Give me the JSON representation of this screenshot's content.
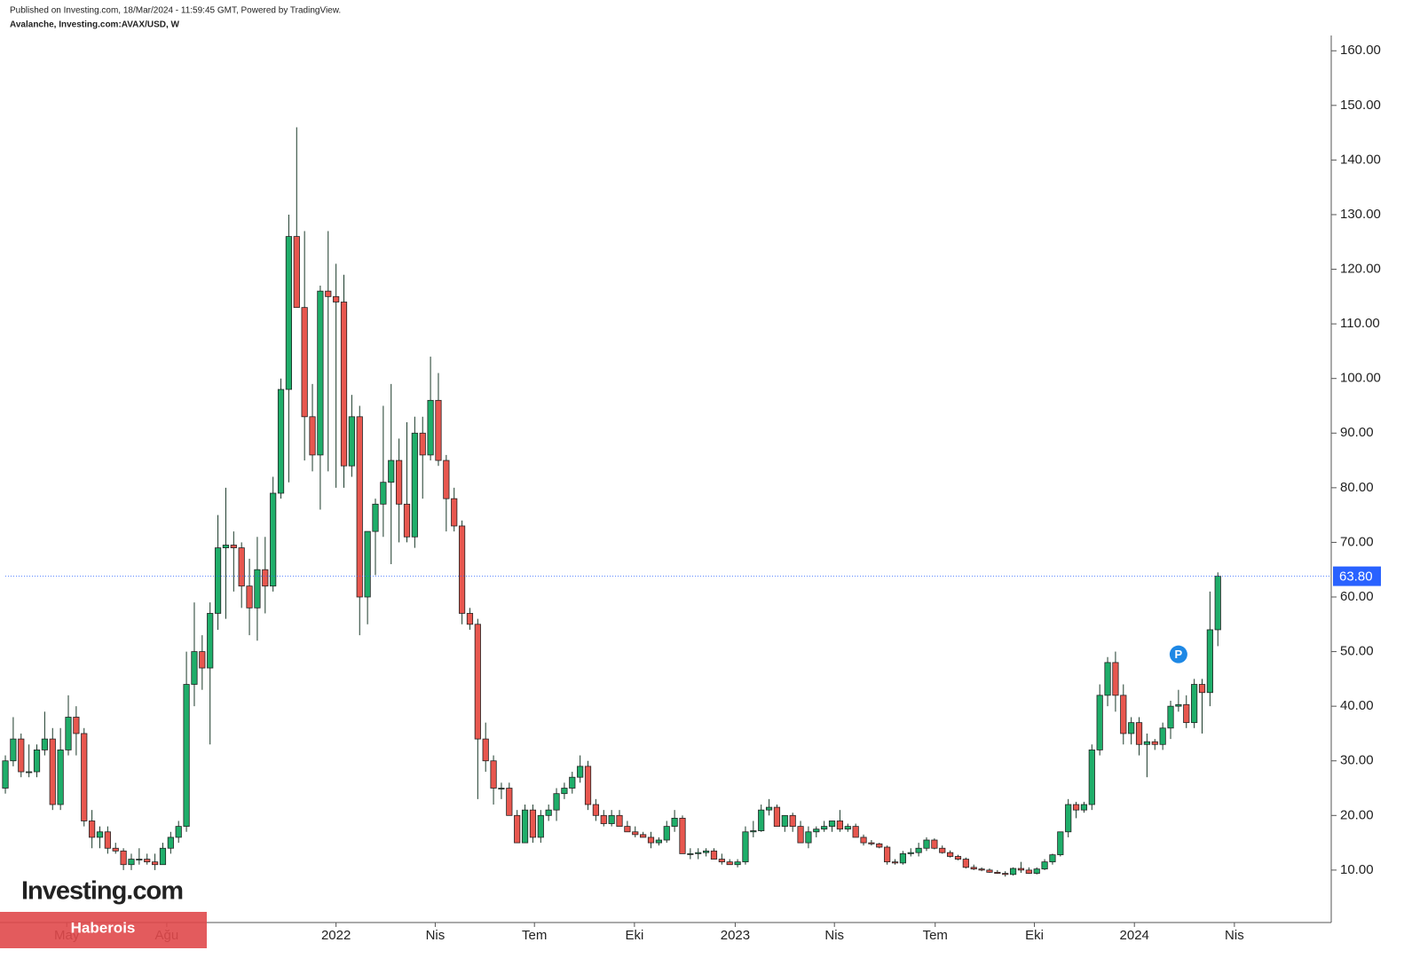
{
  "chart_data": {
    "type": "candlestick",
    "source": "Published on Investing.com, 18/Mar/2024 - 11:59:45 GMT, Powered by TradingView.",
    "title": "Avalanche, Investing.com:AVAX/USD, W",
    "logo": "Investing.com",
    "watermark": "Haberois",
    "marker": "P",
    "up_color": "#1fae6a",
    "down_color": "#e8574f",
    "last_price": {
      "value": 63.8,
      "label": "63.80"
    },
    "last_price_color": "#2962ff",
    "open": [
      25,
      30,
      34,
      28,
      28,
      32,
      34,
      22,
      32,
      38,
      35,
      19,
      16,
      17,
      14,
      13.5,
      11,
      12,
      12,
      11.5,
      11,
      14,
      16,
      18,
      44,
      50,
      47,
      57,
      69,
      69.5,
      69,
      62,
      58,
      65,
      62,
      79,
      98,
      126,
      113,
      93,
      86,
      116,
      115,
      114,
      84,
      93,
      60,
      72,
      77,
      81,
      85,
      77,
      71,
      90,
      86,
      96,
      85,
      78,
      73,
      57,
      55,
      34,
      30,
      25,
      25,
      20,
      15,
      21,
      16,
      20,
      21,
      24,
      25,
      27,
      29,
      22,
      20,
      18.5,
      20,
      18,
      17,
      16.5,
      16,
      15,
      15.5,
      18,
      19.5,
      13,
      13,
      13.2,
      13.5,
      12,
      11.5,
      11,
      11.5,
      17,
      17.2,
      21,
      21.5,
      18,
      20,
      18,
      15,
      17,
      17.5,
      18,
      19,
      17.5,
      18,
      16,
      15,
      14.8,
      14.2,
      11.5,
      11.3,
      13,
      13.2,
      14,
      15.5,
      14,
      13.2,
      12.5,
      12,
      10.5,
      10.2,
      10,
      9.6,
      9.4,
      9.2,
      10.3,
      10,
      9.4,
      10.2,
      11.5,
      12.8,
      17,
      22,
      21,
      22,
      32,
      42,
      48,
      42,
      35,
      37,
      33,
      33.5,
      33,
      36,
      40,
      40.3,
      37,
      44,
      42.5,
      54
    ],
    "high": [
      31,
      38,
      35,
      33,
      33,
      39,
      36,
      36,
      42,
      40,
      36,
      21,
      18,
      18,
      15,
      14,
      13,
      14,
      13,
      13,
      15,
      17,
      19,
      50,
      59,
      53,
      59,
      75,
      80,
      72,
      70,
      67,
      71,
      71,
      82,
      100,
      130,
      146,
      127,
      99,
      117,
      127,
      121,
      119,
      97,
      95,
      72,
      78,
      95,
      99,
      89,
      92,
      93,
      93,
      104,
      101,
      86,
      80,
      74,
      58,
      56,
      37,
      31,
      26,
      26,
      21,
      22,
      22,
      21,
      22,
      25,
      26,
      28,
      31,
      30,
      23,
      21,
      21,
      21,
      19,
      18,
      17,
      17,
      16,
      19,
      21,
      20,
      14,
      14,
      14,
      14,
      13,
      12,
      12,
      18,
      19,
      22,
      23,
      22,
      20,
      20.5,
      19,
      18,
      18,
      19,
      19,
      21,
      18.5,
      18.5,
      16.5,
      15.5,
      15,
      14.5,
      12,
      13.5,
      14,
      15,
      16,
      15.8,
      14.5,
      13.6,
      12.8,
      12.3,
      11,
      10.5,
      10.3,
      10,
      9.8,
      10.5,
      11.5,
      10.5,
      10.5,
      12,
      13,
      17,
      23,
      22.5,
      22.5,
      33,
      44,
      49,
      50,
      44,
      38,
      38,
      35,
      34,
      37,
      41,
      43,
      42,
      45,
      45,
      61,
      64.5
    ],
    "low": [
      24,
      29,
      27,
      27,
      27,
      31,
      21,
      21,
      31,
      31,
      18,
      14,
      14,
      13,
      13,
      10,
      10,
      11,
      11,
      10,
      11,
      13,
      15,
      17,
      40,
      43,
      33,
      54,
      56,
      61,
      58,
      53,
      52,
      57,
      61,
      78,
      81,
      113,
      85,
      83,
      76,
      83,
      80,
      80,
      82,
      53,
      55,
      64,
      71,
      66,
      70,
      70,
      69,
      78,
      85,
      84,
      72,
      72,
      55,
      54,
      23,
      28,
      22,
      23,
      20,
      15,
      15,
      15,
      15,
      19,
      19,
      23,
      24,
      26,
      21,
      19,
      18,
      18,
      18,
      17,
      16,
      16,
      14,
      14.5,
      15,
      17,
      13,
      12,
      12,
      12.5,
      12,
      11,
      11,
      10.5,
      11,
      16,
      17,
      20,
      18,
      17,
      17,
      15,
      14,
      16,
      17,
      17,
      17,
      17,
      16,
      14.5,
      14.5,
      14,
      11,
      11,
      11,
      12.5,
      12.5,
      13.5,
      13.8,
      13,
      12.3,
      11.8,
      10.3,
      10,
      9.8,
      9.5,
      9.3,
      8.8,
      9,
      9.5,
      9.3,
      9.2,
      10,
      11,
      12.5,
      16,
      19.5,
      20.5,
      21,
      31,
      40,
      39,
      33,
      33,
      31,
      27,
      32,
      32,
      34,
      39,
      36,
      36,
      35,
      40,
      51
    ],
    "close": [
      30,
      34,
      28,
      28,
      32,
      34,
      22,
      32,
      38,
      35,
      19,
      16,
      17,
      14,
      13.5,
      11,
      12,
      12,
      11.5,
      11,
      14,
      16,
      18,
      44,
      50,
      47,
      57,
      69,
      69.5,
      69,
      62,
      58,
      65,
      62,
      79,
      98,
      126,
      113,
      93,
      86,
      116,
      115,
      114,
      84,
      93,
      60,
      72,
      77,
      81,
      85,
      77,
      71,
      90,
      86,
      96,
      85,
      78,
      73,
      57,
      55,
      34,
      30,
      25,
      25,
      20,
      15,
      21,
      16,
      20,
      21,
      24,
      25,
      27,
      29,
      22,
      20,
      18.5,
      20,
      18,
      17,
      16.5,
      16,
      15,
      15.5,
      18,
      19.5,
      13,
      13,
      13.2,
      13.5,
      12,
      11.5,
      11,
      11.5,
      17,
      17.2,
      21,
      21.5,
      18,
      20,
      18,
      15,
      17,
      17.5,
      18,
      19,
      17.5,
      18,
      16,
      15,
      14.8,
      14.2,
      11.5,
      11.3,
      13,
      13.2,
      14,
      15.5,
      14,
      13.2,
      12.5,
      12,
      10.5,
      10.2,
      10,
      9.6,
      9.4,
      9.2,
      10.3,
      10,
      9.4,
      10.2,
      11.5,
      12.8,
      17,
      22,
      21,
      22,
      32,
      42,
      48,
      42,
      35,
      37,
      33,
      33.5,
      33,
      36,
      40,
      40.3,
      37,
      44,
      42.5,
      54,
      63.8
    ],
    "xlim": [
      -0.68,
      168.4
    ],
    "xticks": [
      {
        "value": 7.8,
        "label": "May"
      },
      {
        "value": 20.5,
        "label": "Ağu"
      },
      {
        "value": 42,
        "label": "2022"
      },
      {
        "value": 54.6,
        "label": "Nis"
      },
      {
        "value": 67.2,
        "label": "Tem"
      },
      {
        "value": 79.9,
        "label": "Eki"
      },
      {
        "value": 92.7,
        "label": "2023"
      },
      {
        "value": 105.3,
        "label": "Nis"
      },
      {
        "value": 118.1,
        "label": "Tem"
      },
      {
        "value": 130.7,
        "label": "Eki"
      },
      {
        "value": 143.4,
        "label": "2024"
      },
      {
        "value": 156.1,
        "label": "Nis"
      }
    ],
    "ylim": [
      0.4,
      162.8
    ],
    "yticks": [
      {
        "value": 10,
        "label": "10.00"
      },
      {
        "value": 20,
        "label": "20.00"
      },
      {
        "value": 30,
        "label": "30.00"
      },
      {
        "value": 40,
        "label": "40.00"
      },
      {
        "value": 50,
        "label": "50.00"
      },
      {
        "value": 60,
        "label": "60.00"
      },
      {
        "value": 70,
        "label": "70.00"
      },
      {
        "value": 80,
        "label": "80.00"
      },
      {
        "value": 90,
        "label": "90.00"
      },
      {
        "value": 100,
        "label": "100.00"
      },
      {
        "value": 110,
        "label": "110.00"
      },
      {
        "value": 120,
        "label": "120.00"
      },
      {
        "value": 130,
        "label": "130.00"
      },
      {
        "value": 140,
        "label": "140.00"
      },
      {
        "value": 150,
        "label": "150.00"
      },
      {
        "value": 160,
        "label": "160.00"
      }
    ]
  }
}
